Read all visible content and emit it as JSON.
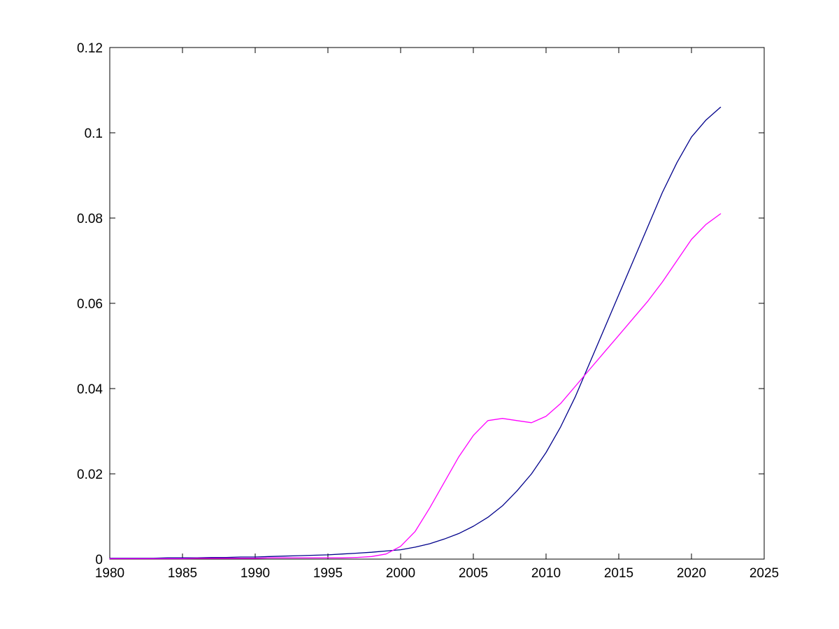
{
  "figure": {
    "background": "#ffffff",
    "axis_color": "#000000",
    "tick_label_color": "#000000"
  },
  "chart_data": {
    "type": "line",
    "title": "",
    "xlabel": "",
    "ylabel": "",
    "grid": false,
    "legend": null,
    "xlim": [
      1980,
      2025
    ],
    "ylim": [
      0,
      0.12
    ],
    "xticks": [
      1980,
      1985,
      1990,
      1995,
      2000,
      2005,
      2010,
      2015,
      2020,
      2025
    ],
    "xtick_labels": [
      "1980",
      "1985",
      "1990",
      "1995",
      "2000",
      "2005",
      "2010",
      "2015",
      "2020",
      "2025"
    ],
    "yticks": [
      0,
      0.02,
      0.04,
      0.06,
      0.08,
      0.1,
      0.12
    ],
    "ytick_labels": [
      "0",
      "0.02",
      "0.04",
      "0.06",
      "0.08",
      "0.1",
      "0.12"
    ],
    "x": [
      1980,
      1981,
      1982,
      1983,
      1984,
      1985,
      1986,
      1987,
      1988,
      1989,
      1990,
      1991,
      1992,
      1993,
      1994,
      1995,
      1996,
      1997,
      1998,
      1999,
      2000,
      2001,
      2002,
      2003,
      2004,
      2005,
      2006,
      2007,
      2008,
      2009,
      2010,
      2011,
      2012,
      2013,
      2014,
      2015,
      2016,
      2017,
      2018,
      2019,
      2020,
      2021,
      2022
    ],
    "series": [
      {
        "name": "blue",
        "color": "#00008B",
        "values": [
          0.0002,
          0.0002,
          0.0002,
          0.0002,
          0.0003,
          0.0003,
          0.0003,
          0.0004,
          0.0004,
          0.0005,
          0.0005,
          0.0006,
          0.0007,
          0.0008,
          0.0009,
          0.001,
          0.0012,
          0.0014,
          0.0016,
          0.0019,
          0.0022,
          0.0028,
          0.0036,
          0.0047,
          0.006,
          0.0077,
          0.0098,
          0.0125,
          0.016,
          0.02,
          0.025,
          0.031,
          0.038,
          0.046,
          0.054,
          0.062,
          0.07,
          0.078,
          0.086,
          0.093,
          0.099,
          0.103,
          0.106
        ]
      },
      {
        "name": "magenta",
        "color": "#FF00FF",
        "values": [
          0.0001,
          0.0001,
          0.0001,
          0.0001,
          0.0001,
          0.0001,
          0.0002,
          0.0002,
          0.0002,
          0.0002,
          0.0002,
          0.0003,
          0.0003,
          0.0003,
          0.0003,
          0.0003,
          0.0003,
          0.0004,
          0.0006,
          0.0012,
          0.003,
          0.0065,
          0.012,
          0.018,
          0.024,
          0.029,
          0.0325,
          0.033,
          0.0325,
          0.032,
          0.0335,
          0.0365,
          0.0405,
          0.0445,
          0.0485,
          0.0525,
          0.0565,
          0.0605,
          0.065,
          0.07,
          0.075,
          0.0785,
          0.081
        ]
      }
    ]
  }
}
